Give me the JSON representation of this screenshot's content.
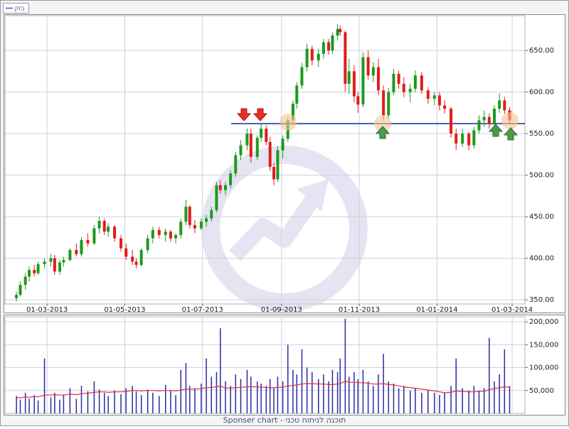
{
  "chart_data": [
    {
      "type": "candlestick",
      "legend": "בזק",
      "legend_color": "#8040a0",
      "up_color": "#1c9a1c",
      "down_color": "#e01c1c",
      "grid": true,
      "hline": 562,
      "hline_color": "#1f3f9f",
      "xlim": [
        "2013-01-27",
        "2014-03-11"
      ],
      "xticks": [
        {
          "value": "2013-03-01",
          "label": "01-03-2013"
        },
        {
          "value": "2013-05-01",
          "label": "01-05-2013"
        },
        {
          "value": "2013-07-01",
          "label": "01-07-2013"
        },
        {
          "value": "2013-09-01",
          "label": "01-09-2013"
        },
        {
          "value": "2013-11-01",
          "label": "01-11-2013"
        },
        {
          "value": "2014-01-01",
          "label": "01-01-2014"
        },
        {
          "value": "2014-03-01",
          "label": "01-03-2014"
        }
      ],
      "ylim": [
        345,
        692
      ],
      "yticks": [
        {
          "value": 350,
          "label": "350.00"
        },
        {
          "value": 400,
          "label": "400.00"
        },
        {
          "value": 450,
          "label": "450.00"
        },
        {
          "value": 500,
          "label": "500.00"
        },
        {
          "value": 550,
          "label": "550.00"
        },
        {
          "value": 600,
          "label": "600.00"
        },
        {
          "value": 650,
          "label": "650.00"
        }
      ],
      "x": [
        "2013-02-05",
        "2013-02-08",
        "2013-02-12",
        "2013-02-15",
        "2013-02-19",
        "2013-02-22",
        "2013-02-27",
        "2013-03-04",
        "2013-03-07",
        "2013-03-11",
        "2013-03-14",
        "2013-03-19",
        "2013-03-24",
        "2013-03-28",
        "2013-04-02",
        "2013-04-07",
        "2013-04-11",
        "2013-04-15",
        "2013-04-18",
        "2013-04-23",
        "2013-04-28",
        "2013-05-02",
        "2013-05-07",
        "2013-05-10",
        "2013-05-14",
        "2013-05-19",
        "2013-05-23",
        "2013-05-28",
        "2013-06-02",
        "2013-06-06",
        "2013-06-10",
        "2013-06-14",
        "2013-06-18",
        "2013-06-21",
        "2013-06-25",
        "2013-06-30",
        "2013-07-04",
        "2013-07-08",
        "2013-07-12",
        "2013-07-15",
        "2013-07-19",
        "2013-07-23",
        "2013-07-27",
        "2013-07-31",
        "2013-08-05",
        "2013-08-08",
        "2013-08-13",
        "2013-08-16",
        "2013-08-20",
        "2013-08-23",
        "2013-08-26",
        "2013-08-29",
        "2013-09-02",
        "2013-09-06",
        "2013-09-10",
        "2013-09-13",
        "2013-09-17",
        "2013-09-21",
        "2013-09-25",
        "2013-09-30",
        "2013-10-04",
        "2013-10-08",
        "2013-10-11",
        "2013-10-15",
        "2013-10-17",
        "2013-10-21",
        "2013-10-24",
        "2013-10-28",
        "2013-10-31",
        "2013-11-04",
        "2013-11-08",
        "2013-11-12",
        "2013-11-16",
        "2013-11-20",
        "2013-11-24",
        "2013-11-28",
        "2013-12-02",
        "2013-12-06",
        "2013-12-11",
        "2013-12-15",
        "2013-12-20",
        "2013-12-25",
        "2013-12-30",
        "2014-01-03",
        "2014-01-07",
        "2014-01-12",
        "2014-01-16",
        "2014-01-21",
        "2014-01-26",
        "2014-01-30",
        "2014-02-03",
        "2014-02-07",
        "2014-02-11",
        "2014-02-15",
        "2014-02-19",
        "2014-02-23",
        "2014-02-27"
      ],
      "open": [
        352,
        356,
        368,
        378,
        386,
        382,
        393,
        396,
        400,
        384,
        395,
        398,
        410,
        405,
        422,
        418,
        436,
        445,
        432,
        438,
        424,
        412,
        402,
        396,
        392,
        410,
        424,
        434,
        428,
        432,
        424,
        428,
        444,
        462,
        440,
        436,
        444,
        448,
        458,
        488,
        482,
        488,
        502,
        524,
        536,
        550,
        522,
        545,
        556,
        540,
        510,
        495,
        530,
        544,
        566,
        586,
        608,
        630,
        652,
        638,
        646,
        660,
        650,
        668,
        676,
        672,
        610,
        625,
        595,
        585,
        642,
        620,
        630,
        602,
        572,
        600,
        622,
        610,
        600,
        604,
        620,
        602,
        592,
        596,
        584,
        580,
        550,
        538,
        550,
        536,
        554,
        566,
        570,
        562,
        580,
        590,
        578
      ],
      "high": [
        360,
        372,
        382,
        390,
        392,
        396,
        400,
        405,
        404,
        398,
        402,
        412,
        418,
        425,
        430,
        440,
        450,
        448,
        442,
        440,
        428,
        418,
        410,
        400,
        412,
        428,
        438,
        438,
        436,
        434,
        430,
        448,
        470,
        464,
        446,
        448,
        452,
        462,
        492,
        494,
        492,
        506,
        528,
        542,
        556,
        556,
        548,
        562,
        560,
        546,
        515,
        535,
        548,
        570,
        590,
        612,
        635,
        658,
        656,
        652,
        664,
        664,
        672,
        682,
        680,
        674,
        640,
        632,
        600,
        648,
        650,
        636,
        640,
        608,
        605,
        628,
        626,
        618,
        610,
        626,
        624,
        606,
        600,
        600,
        590,
        582,
        556,
        556,
        552,
        558,
        572,
        578,
        574,
        584,
        598,
        594,
        582
      ],
      "low": [
        348,
        354,
        362,
        372,
        378,
        380,
        388,
        390,
        380,
        380,
        390,
        396,
        402,
        402,
        414,
        416,
        430,
        428,
        426,
        420,
        408,
        398,
        392,
        388,
        390,
        406,
        418,
        424,
        420,
        420,
        418,
        424,
        440,
        436,
        430,
        434,
        438,
        444,
        455,
        478,
        476,
        484,
        498,
        518,
        530,
        515,
        518,
        540,
        536,
        505,
        488,
        492,
        520,
        540,
        560,
        580,
        604,
        625,
        632,
        630,
        640,
        645,
        646,
        662,
        668,
        600,
        598,
        588,
        575,
        582,
        615,
        612,
        596,
        566,
        568,
        596,
        604,
        594,
        588,
        600,
        598,
        586,
        584,
        578,
        574,
        545,
        530,
        534,
        530,
        532,
        550,
        558,
        556,
        560,
        575,
        574,
        562
      ],
      "close": [
        356,
        368,
        378,
        386,
        382,
        393,
        396,
        400,
        384,
        395,
        398,
        410,
        405,
        422,
        418,
        436,
        445,
        432,
        438,
        424,
        412,
        402,
        396,
        392,
        410,
        424,
        434,
        428,
        432,
        424,
        428,
        444,
        462,
        440,
        436,
        444,
        448,
        458,
        488,
        482,
        488,
        502,
        524,
        536,
        550,
        522,
        545,
        556,
        540,
        510,
        495,
        530,
        544,
        566,
        586,
        608,
        630,
        652,
        638,
        646,
        660,
        650,
        668,
        676,
        672,
        610,
        625,
        595,
        585,
        642,
        620,
        630,
        602,
        572,
        600,
        622,
        610,
        600,
        604,
        620,
        602,
        592,
        596,
        584,
        580,
        550,
        538,
        550,
        536,
        554,
        566,
        570,
        562,
        580,
        590,
        578,
        566
      ]
    },
    {
      "type": "bar",
      "color": "#2a2aa8",
      "ma_color": "#e0303a",
      "grid": true,
      "ylim": [
        0,
        211000
      ],
      "yticks": [
        {
          "value": 50000,
          "label": "50,000"
        },
        {
          "value": 100000,
          "label": "100,000"
        },
        {
          "value": 150000,
          "label": "150,000"
        },
        {
          "value": 200000,
          "label": "200,000"
        }
      ],
      "values": [
        38000,
        30000,
        45000,
        32000,
        40000,
        28000,
        120000,
        35000,
        45000,
        30000,
        40000,
        55000,
        32000,
        60000,
        48000,
        70000,
        52000,
        45000,
        38000,
        50000,
        42000,
        55000,
        60000,
        48000,
        40000,
        52000,
        45000,
        38000,
        62000,
        50000,
        40000,
        95000,
        110000,
        60000,
        55000,
        65000,
        120000,
        80000,
        90000,
        186000,
        70000,
        60000,
        85000,
        75000,
        95000,
        80000,
        70000,
        65000,
        60000,
        75000,
        55000,
        80000,
        70000,
        150000,
        95000,
        85000,
        140000,
        100000,
        90000,
        75000,
        85000,
        70000,
        95000,
        90000,
        120000,
        207000,
        80000,
        90000,
        75000,
        95000,
        70000,
        60000,
        85000,
        130000,
        70000,
        65000,
        55000,
        60000,
        50000,
        55000,
        45000,
        50000,
        45000,
        40000,
        45000,
        60000,
        120000,
        55000,
        50000,
        60000,
        50000,
        55000,
        165000,
        70000,
        85000,
        140000,
        60000
      ],
      "ma_values": [
        35000,
        34000,
        36000,
        35000,
        37000,
        36000,
        40000,
        40000,
        41000,
        40000,
        40000,
        42000,
        41000,
        43000,
        44000,
        46000,
        47000,
        47000,
        46000,
        47000,
        47000,
        48000,
        50000,
        50000,
        49000,
        50000,
        50000,
        49000,
        50000,
        50000,
        49000,
        51000,
        53000,
        53000,
        53000,
        54000,
        56000,
        57000,
        58000,
        60000,
        55000,
        55000,
        56000,
        57000,
        58000,
        58000,
        58000,
        57000,
        57000,
        56000,
        56000,
        57000,
        57000,
        60000,
        61000,
        62000,
        64000,
        65000,
        65000,
        64000,
        64000,
        63000,
        63000,
        64000,
        65000,
        70000,
        68000,
        68000,
        67000,
        67000,
        66000,
        64000,
        64000,
        65000,
        63000,
        62000,
        60000,
        58000,
        56000,
        55000,
        53000,
        51000,
        49000,
        47000,
        45000,
        46000,
        49000,
        48000,
        47000,
        47000,
        48000,
        48000,
        52000,
        54000,
        56000,
        58000,
        57000
      ]
    }
  ],
  "footer": "Sponser chart - תוכנה לניתוח טכני"
}
